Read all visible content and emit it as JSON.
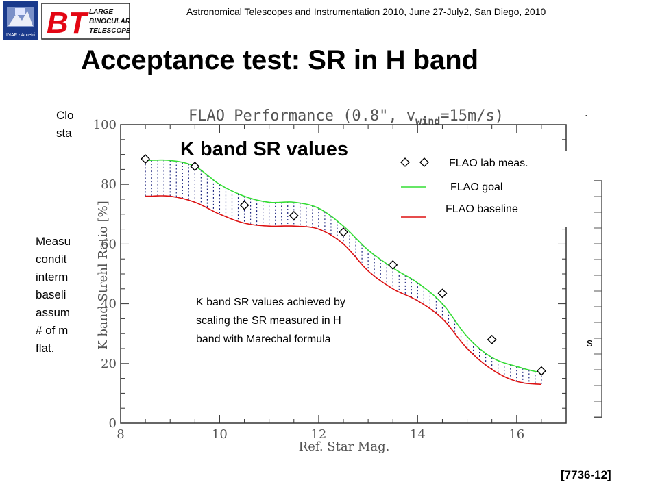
{
  "header": {
    "conference": "Astronomical Telescopes and Instrumentation 2010, June 27-July2, San Diego, 2010",
    "logos": {
      "inaf": {
        "text": "INAF - Arcetri",
        "color": "#1a3a8c"
      },
      "lbt": {
        "text": [
          "LARGE",
          "BINOCULAR",
          "TELESCOPE"
        ],
        "mark": "BT",
        "color": "#e30613"
      }
    }
  },
  "slide": {
    "title": "Acceptance test: SR in H band",
    "reference": "[7736-12]",
    "background_fragments": {
      "top": [
        "Clo",
        "sta"
      ],
      "left": [
        "Measu",
        "condit",
        "interm",
        "baseli",
        "assum",
        "# of m",
        "flat."
      ],
      "right_dot": ".",
      "right_s": "s"
    }
  },
  "chart_data": {
    "type": "line",
    "title": "FLAO Performance (0.8\", v",
    "title_sub": "wind",
    "title_tail": "=15m/s)",
    "xlabel": "Ref. Star Mag.",
    "ylabel": "K band Strehl Ratio [%]",
    "xlim": [
      8,
      17
    ],
    "ylim": [
      0,
      100
    ],
    "xticks": [
      8,
      10,
      12,
      14,
      16
    ],
    "yticks": [
      0,
      20,
      40,
      60,
      80,
      100
    ],
    "overlay_title": "K band SR values",
    "annotation": [
      "K band SR values achieved by",
      "scaling the SR measured in H",
      "band with Marechal formula"
    ],
    "legend": {
      "placement": "top-right",
      "lab": "FLAO lab meas.",
      "goal": "FLAO goal",
      "baseline": "FLAO baseline"
    },
    "colors": {
      "goal": "#33dd33",
      "baseline": "#dd1111",
      "hatch": "#1a237e",
      "marker": "#000000"
    },
    "series": [
      {
        "name": "FLAO goal",
        "x": [
          8.5,
          9,
          9.5,
          10,
          10.5,
          11,
          11.5,
          12,
          12.5,
          13,
          13.5,
          14,
          14.5,
          15,
          15.5,
          16,
          16.5
        ],
        "values": [
          88,
          88,
          86,
          80,
          76,
          74,
          74,
          72,
          66,
          58,
          52,
          47,
          40,
          29,
          22,
          19,
          17
        ]
      },
      {
        "name": "FLAO baseline",
        "x": [
          8.5,
          9,
          9.5,
          10,
          10.5,
          11,
          11.5,
          12,
          12.5,
          13,
          13.5,
          14,
          14.5,
          15,
          15.5,
          16,
          16.5
        ],
        "values": [
          76,
          76,
          74,
          70,
          67,
          66,
          66,
          65,
          60,
          51,
          45,
          41,
          35,
          25,
          18,
          14,
          13
        ]
      },
      {
        "name": "FLAO lab meas.",
        "x": [
          8.5,
          9.5,
          10.5,
          11.5,
          12.5,
          13.5,
          14.5,
          15.5,
          16.5
        ],
        "values": [
          88.5,
          86,
          73,
          69.5,
          64,
          53,
          43.5,
          28,
          17.5
        ]
      }
    ]
  }
}
